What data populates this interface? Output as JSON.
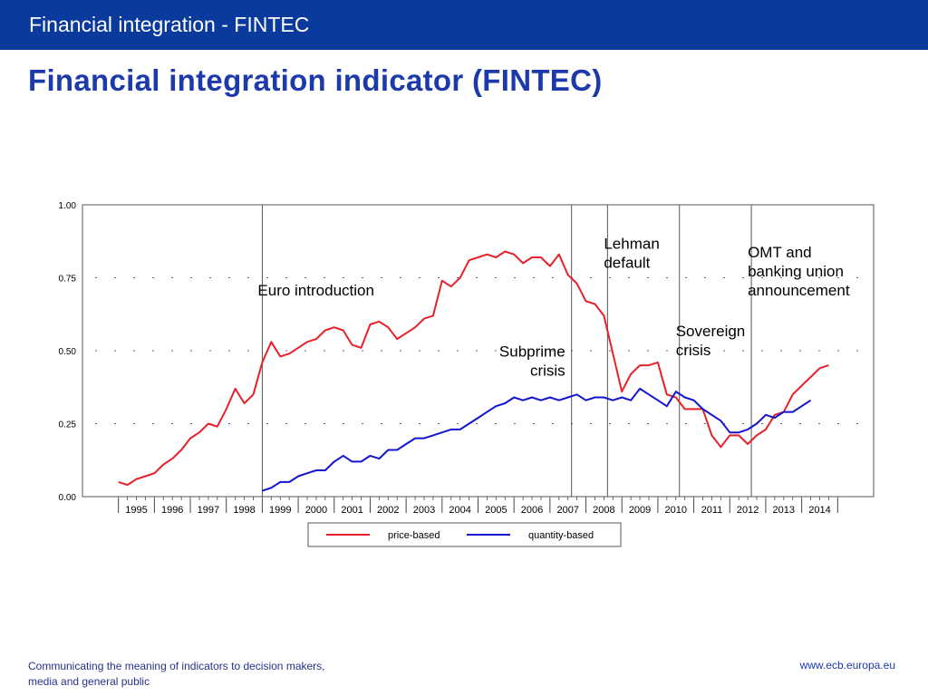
{
  "header": {
    "bar_title": "Financial integration - FINTEC",
    "slide_title": "Financial integration indicator (FINTEC)"
  },
  "footer": {
    "left_line1": "Communicating the meaning of indicators to decision makers,",
    "left_line2": "media and general public",
    "right": "www.ecb.europa.eu"
  },
  "colors": {
    "header_bar": "#0a3a9c",
    "title": "#1c3aa9",
    "price_based": "#e8202a",
    "quantity_based": "#1414d2"
  },
  "chart_data": {
    "type": "line",
    "ylim": [
      0,
      1
    ],
    "xlim": [
      1994.0,
      2016.0
    ],
    "yticks": [
      "0.00",
      "0.25",
      "0.50",
      "0.75",
      "1.00"
    ],
    "ytick_values": [
      0,
      0.25,
      0.5,
      0.75,
      1.0
    ],
    "xtick_labels": [
      "1995",
      "1996",
      "1997",
      "1998",
      "1999",
      "2000",
      "2001",
      "2002",
      "2003",
      "2004",
      "2005",
      "2006",
      "2007",
      "2008",
      "2009",
      "2010",
      "2011",
      "2012",
      "2013",
      "2014"
    ],
    "grid": "dashed horizontal at 0.25, 0.50, 0.75",
    "legend": "bottom-center",
    "series": [
      {
        "name": "price-based",
        "color": "#e8202a",
        "x": [
          1995.0,
          1995.25,
          1995.5,
          1995.75,
          1996.0,
          1996.25,
          1996.5,
          1996.75,
          1997.0,
          1997.25,
          1997.5,
          1997.75,
          1998.0,
          1998.25,
          1998.5,
          1998.75,
          1999.0,
          1999.25,
          1999.5,
          1999.75,
          2000.0,
          2000.25,
          2000.5,
          2000.75,
          2001.0,
          2001.25,
          2001.5,
          2001.75,
          2002.0,
          2002.25,
          2002.5,
          2002.75,
          2003.0,
          2003.25,
          2003.5,
          2003.75,
          2004.0,
          2004.25,
          2004.5,
          2004.75,
          2005.0,
          2005.25,
          2005.5,
          2005.75,
          2006.0,
          2006.25,
          2006.5,
          2006.75,
          2007.0,
          2007.25,
          2007.5,
          2007.75,
          2008.0,
          2008.25,
          2008.5,
          2008.75,
          2009.0,
          2009.25,
          2009.5,
          2009.75,
          2010.0,
          2010.25,
          2010.5,
          2010.75,
          2011.0,
          2011.25,
          2011.5,
          2011.75,
          2012.0,
          2012.25,
          2012.5,
          2012.75,
          2013.0,
          2013.25,
          2013.5,
          2013.75,
          2014.0,
          2014.25,
          2014.5,
          2014.75
        ],
        "values": [
          0.05,
          0.04,
          0.06,
          0.07,
          0.08,
          0.11,
          0.13,
          0.16,
          0.2,
          0.22,
          0.25,
          0.24,
          0.3,
          0.37,
          0.32,
          0.35,
          0.46,
          0.53,
          0.48,
          0.49,
          0.51,
          0.53,
          0.54,
          0.57,
          0.58,
          0.57,
          0.52,
          0.51,
          0.59,
          0.6,
          0.58,
          0.54,
          0.56,
          0.58,
          0.61,
          0.62,
          0.74,
          0.72,
          0.75,
          0.81,
          0.82,
          0.83,
          0.82,
          0.84,
          0.83,
          0.8,
          0.82,
          0.82,
          0.79,
          0.83,
          0.76,
          0.73,
          0.67,
          0.66,
          0.62,
          0.49,
          0.36,
          0.42,
          0.45,
          0.45,
          0.46,
          0.35,
          0.34,
          0.3,
          0.3,
          0.3,
          0.21,
          0.17,
          0.21,
          0.21,
          0.18,
          0.21,
          0.23,
          0.28,
          0.29,
          0.35,
          0.38,
          0.41,
          0.44,
          0.45
        ]
      },
      {
        "name": "quantity-based",
        "color": "#1414d2",
        "x": [
          1999.0,
          1999.25,
          1999.5,
          1999.75,
          2000.0,
          2000.25,
          2000.5,
          2000.75,
          2001.0,
          2001.25,
          2001.5,
          2001.75,
          2002.0,
          2002.25,
          2002.5,
          2002.75,
          2003.0,
          2003.25,
          2003.5,
          2003.75,
          2004.0,
          2004.25,
          2004.5,
          2004.75,
          2005.0,
          2005.25,
          2005.5,
          2005.75,
          2006.0,
          2006.25,
          2006.5,
          2006.75,
          2007.0,
          2007.25,
          2007.5,
          2007.75,
          2008.0,
          2008.25,
          2008.5,
          2008.75,
          2009.0,
          2009.25,
          2009.5,
          2009.75,
          2010.0,
          2010.25,
          2010.5,
          2010.75,
          2011.0,
          2011.25,
          2011.5,
          2011.75,
          2012.0,
          2012.25,
          2012.5,
          2012.75,
          2013.0,
          2013.25,
          2013.5,
          2013.75,
          2014.0,
          2014.25
        ],
        "values": [
          0.02,
          0.03,
          0.05,
          0.05,
          0.07,
          0.08,
          0.09,
          0.09,
          0.12,
          0.14,
          0.12,
          0.12,
          0.14,
          0.13,
          0.16,
          0.16,
          0.18,
          0.2,
          0.2,
          0.21,
          0.22,
          0.23,
          0.23,
          0.25,
          0.27,
          0.29,
          0.31,
          0.32,
          0.34,
          0.33,
          0.34,
          0.33,
          0.34,
          0.33,
          0.34,
          0.35,
          0.33,
          0.34,
          0.34,
          0.33,
          0.34,
          0.33,
          0.37,
          0.35,
          0.33,
          0.31,
          0.36,
          0.34,
          0.33,
          0.3,
          0.28,
          0.26,
          0.22,
          0.22,
          0.23,
          0.25,
          0.28,
          0.27,
          0.29,
          0.29,
          0.31,
          0.33
        ]
      }
    ],
    "events": [
      {
        "x": 1999.0,
        "label_lines": [
          "Euro introduction"
        ],
        "label_anchor": "start",
        "label_dx": -5,
        "label_y": 0.69
      },
      {
        "x": 2007.6,
        "label_lines": [
          "Subprime",
          "crisis"
        ],
        "label_anchor": "end",
        "label_dx": -7,
        "label_y": 0.48
      },
      {
        "x": 2008.6,
        "label_lines": [
          "Lehman",
          "default"
        ],
        "label_anchor": "start",
        "label_dx": -4,
        "label_y": 0.85
      },
      {
        "x": 2010.6,
        "label_lines": [
          "Sovereign",
          "crisis"
        ],
        "label_anchor": "start",
        "label_dx": -4,
        "label_y": 0.55
      },
      {
        "x": 2012.6,
        "label_lines": [
          "OMT and",
          "banking union",
          "announcement"
        ],
        "label_anchor": "start",
        "label_dx": -4,
        "label_y": 0.82
      }
    ]
  }
}
